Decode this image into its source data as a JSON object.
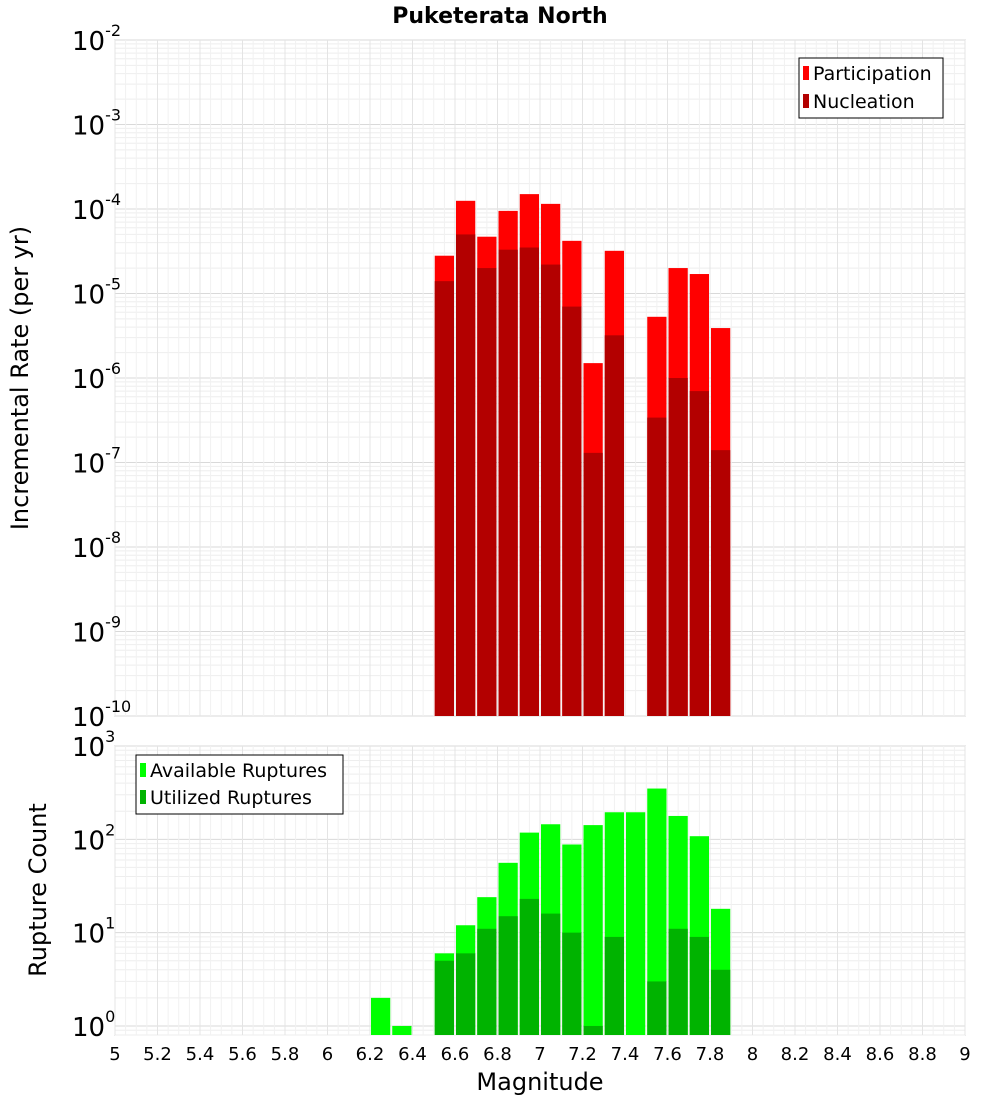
{
  "title": "Puketerata North",
  "chart_data": [
    {
      "type": "bar",
      "title": "Puketerata North",
      "ylabel": "Incremental Rate (per yr)",
      "xlabel": "",
      "yscale": "log",
      "ylim": [
        1e-10,
        0.01
      ],
      "xlim": [
        5,
        9
      ],
      "ytick_labels": [
        {
          "base": "10",
          "exp": "-2"
        },
        {
          "base": "10",
          "exp": "-3"
        },
        {
          "base": "10",
          "exp": "-4"
        },
        {
          "base": "10",
          "exp": "-5"
        },
        {
          "base": "10",
          "exp": "-6"
        },
        {
          "base": "10",
          "exp": "-7"
        },
        {
          "base": "10",
          "exp": "-8"
        },
        {
          "base": "10",
          "exp": "-9"
        },
        {
          "base": "10",
          "exp": "-10"
        }
      ],
      "legend_position": "top-right",
      "x": [
        6.55,
        6.65,
        6.75,
        6.85,
        6.95,
        7.05,
        7.15,
        7.25,
        7.35,
        7.55,
        7.65,
        7.75,
        7.85
      ],
      "series": [
        {
          "name": "Participation",
          "color": "#ff0000",
          "values": [
            2.8e-05,
            0.000125,
            4.7e-05,
            9.5e-05,
            0.00015,
            0.000115,
            4.2e-05,
            1.5e-06,
            3.2e-05,
            5.3e-06,
            2e-05,
            1.7e-05,
            3.9e-06
          ]
        },
        {
          "name": "Nucleation",
          "color": "#b30000",
          "values": [
            1.4e-05,
            5e-05,
            2e-05,
            3.3e-05,
            3.5e-05,
            2.2e-05,
            7e-06,
            1.3e-07,
            3.2e-06,
            3.4e-07,
            1e-06,
            7e-07,
            1.4e-07
          ]
        }
      ]
    },
    {
      "type": "bar",
      "title": "",
      "ylabel": "Rupture Count",
      "xlabel": "Magnitude",
      "yscale": "log",
      "ylim": [
        0.8,
        1000
      ],
      "xlim": [
        5,
        9
      ],
      "ytick_labels": [
        {
          "base": "10",
          "exp": "3"
        },
        {
          "base": "10",
          "exp": "2"
        },
        {
          "base": "10",
          "exp": "1"
        },
        {
          "base": "10",
          "exp": "0"
        }
      ],
      "xtick_labels": [
        "5",
        "5.2",
        "5.4",
        "5.6",
        "5.8",
        "6",
        "6.2",
        "6.4",
        "6.6",
        "6.8",
        "7",
        "7.2",
        "7.4",
        "7.6",
        "7.8",
        "8",
        "8.2",
        "8.4",
        "8.6",
        "8.8",
        "9"
      ],
      "legend_position": "top-left",
      "x": [
        6.25,
        6.35,
        6.55,
        6.65,
        6.75,
        6.85,
        6.95,
        7.05,
        7.15,
        7.25,
        7.35,
        7.45,
        7.55,
        7.65,
        7.75,
        7.85
      ],
      "series": [
        {
          "name": "Available Ruptures",
          "color": "#00ff00",
          "values": [
            2,
            1,
            6,
            12,
            24,
            56,
            118,
            145,
            88,
            142,
            195,
            195,
            350,
            178,
            108,
            18
          ]
        },
        {
          "name": "Utilized Ruptures",
          "color": "#00b300",
          "values": [
            0,
            0,
            5,
            6,
            11,
            15,
            23,
            16,
            10,
            1,
            9,
            0,
            3,
            11,
            9,
            4
          ]
        }
      ]
    }
  ]
}
